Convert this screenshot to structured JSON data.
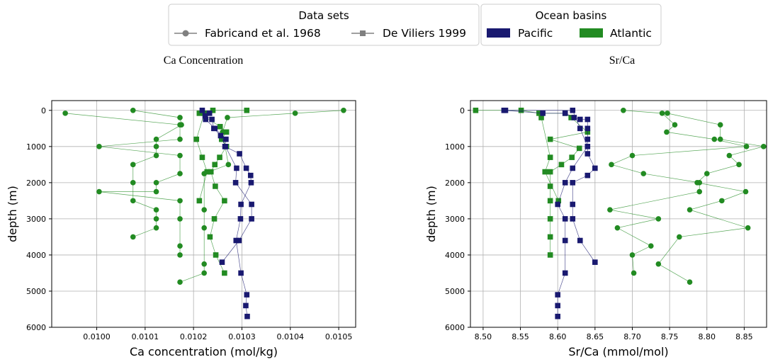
{
  "legend_datasets": {
    "title": "Data sets",
    "items": [
      {
        "label": "Fabricand et al. 1968",
        "marker": "circle"
      },
      {
        "label": "De Viliers 1999",
        "marker": "square"
      }
    ]
  },
  "legend_basins": {
    "title": "Ocean basins",
    "items": [
      {
        "label": "Pacific",
        "color": "#191970"
      },
      {
        "label": "Atlantic",
        "color": "#228b22"
      }
    ]
  },
  "colors": {
    "pacific": "#191970",
    "atlantic": "#228b22",
    "grid": "#b0b0b0"
  },
  "chart_data": [
    {
      "type": "line",
      "title": "Ca Concentration",
      "xlabel": "Ca concentration (mol/kg)",
      "ylabel": "depth (m)",
      "xlim": [
        0.009907,
        0.010535
      ],
      "ylim": [
        6000,
        -270
      ],
      "y_inverted": true,
      "grid": true,
      "xticks": [
        0.01,
        0.0101,
        0.0102,
        0.0103,
        0.0104,
        0.0105
      ],
      "xtick_labels": [
        "0.0100",
        "0.0101",
        "0.0102",
        "0.0103",
        "0.0104",
        "0.0105"
      ],
      "yticks": [
        0,
        1000,
        2000,
        3000,
        4000,
        5000,
        6000
      ],
      "ytick_labels": [
        "0",
        "1000",
        "2000",
        "3000",
        "4000",
        "5000",
        "6000"
      ],
      "series": [
        {
          "basin": "atlantic",
          "marker": "circle",
          "points": [
            [
              0.010075,
              0
            ],
            [
              0.010172,
              200
            ],
            [
              0.010175,
              400
            ],
            [
              0.010123,
              800
            ],
            [
              0.010123,
              1000
            ],
            [
              0.010123,
              1250
            ],
            [
              0.010075,
              1500
            ],
            [
              0.010075,
              2000
            ],
            [
              0.010075,
              2500
            ],
            [
              0.010123,
              2750
            ],
            [
              0.010123,
              3000
            ],
            [
              0.010123,
              3250
            ],
            [
              0.010075,
              3500
            ]
          ]
        },
        {
          "basin": "atlantic",
          "marker": "circle",
          "points": [
            [
              0.009935,
              80
            ],
            [
              0.010172,
              400
            ],
            [
              0.010172,
              800
            ],
            [
              0.010005,
              1000
            ],
            [
              0.010172,
              1250
            ],
            [
              0.010172,
              1750
            ],
            [
              0.010123,
              2000
            ],
            [
              0.010123,
              2250
            ],
            [
              0.010005,
              2250
            ],
            [
              0.010172,
              2500
            ],
            [
              0.010172,
              3000
            ],
            [
              0.010172,
              3750
            ],
            [
              0.010172,
              4000
            ]
          ]
        },
        {
          "basin": "atlantic",
          "marker": "circle",
          "points": [
            [
              0.01051,
              0
            ],
            [
              0.01041,
              80
            ],
            [
              0.01027,
              200
            ],
            [
              0.01026,
              600
            ],
            [
              0.010272,
              1500
            ],
            [
              0.010222,
              1750
            ],
            [
              0.010222,
              2750
            ],
            [
              0.010222,
              3250
            ],
            [
              0.010222,
              4250
            ],
            [
              0.010222,
              4500
            ],
            [
              0.010172,
              4750
            ]
          ]
        },
        {
          "basin": "atlantic",
          "marker": "square",
          "points": [
            [
              0.01031,
              0
            ],
            [
              0.01024,
              0
            ],
            [
              0.010212,
              80
            ],
            [
              0.010255,
              450
            ],
            [
              0.010268,
              600
            ],
            [
              0.010258,
              800
            ],
            [
              0.010268,
              1000
            ],
            [
              0.010254,
              1300
            ],
            [
              0.010244,
              1500
            ],
            [
              0.010236,
              1700
            ],
            [
              0.010245,
              2100
            ],
            [
              0.010264,
              2500
            ],
            [
              0.010243,
              3000
            ],
            [
              0.010234,
              3500
            ],
            [
              0.010246,
              4000
            ],
            [
              0.010264,
              4500
            ]
          ]
        },
        {
          "basin": "atlantic",
          "marker": "square",
          "points": [
            [
              0.010222,
              80
            ],
            [
              0.010206,
              800
            ],
            [
              0.010218,
              1300
            ],
            [
              0.010228,
              1700
            ],
            [
              0.010212,
              2500
            ]
          ]
        },
        {
          "basin": "pacific",
          "marker": "square",
          "points": [
            [
              0.010218,
              0
            ],
            [
              0.010233,
              80
            ],
            [
              0.010225,
              250
            ],
            [
              0.010244,
              500
            ],
            [
              0.010267,
              800
            ],
            [
              0.010265,
              1000
            ],
            [
              0.010295,
              1200
            ],
            [
              0.010309,
              1600
            ],
            [
              0.010318,
              1800
            ],
            [
              0.010319,
              2000
            ],
            [
              0.010298,
              2600
            ],
            [
              0.010297,
              3000
            ],
            [
              0.010288,
              3600
            ],
            [
              0.010298,
              4500
            ],
            [
              0.01031,
              5100
            ],
            [
              0.010308,
              5400
            ],
            [
              0.010311,
              5700
            ]
          ]
        },
        {
          "basin": "pacific",
          "marker": "square",
          "points": [
            [
              0.010224,
              150
            ],
            [
              0.010238,
              250
            ],
            [
              0.010242,
              500
            ],
            [
              0.010256,
              700
            ],
            [
              0.010266,
              1000
            ],
            [
              0.010289,
              1600
            ],
            [
              0.010287,
              2000
            ],
            [
              0.01032,
              2600
            ],
            [
              0.01032,
              3000
            ],
            [
              0.010294,
              3600
            ],
            [
              0.010259,
              4200
            ]
          ]
        }
      ]
    },
    {
      "type": "line",
      "title": "Sr/Ca",
      "xlabel": "Sr/Ca (mmol/mol)",
      "ylabel": "depth (m)",
      "xlim": [
        8.483,
        8.88
      ],
      "ylim": [
        6000,
        -270
      ],
      "y_inverted": true,
      "grid": true,
      "xticks": [
        8.5,
        8.55,
        8.6,
        8.65,
        8.7,
        8.75,
        8.8,
        8.85
      ],
      "xtick_labels": [
        "8.50",
        "8.55",
        "8.60",
        "8.65",
        "8.70",
        "8.75",
        "8.80",
        "8.85"
      ],
      "yticks": [
        0,
        1000,
        2000,
        3000,
        4000,
        5000,
        6000
      ],
      "ytick_labels": [
        "0",
        "1000",
        "2000",
        "3000",
        "4000",
        "5000",
        "6000"
      ],
      "series": [
        {
          "basin": "atlantic",
          "marker": "circle",
          "points": [
            [
              8.688,
              0
            ],
            [
              8.74,
              80
            ],
            [
              8.757,
              400
            ],
            [
              8.746,
              600
            ],
            [
              8.81,
              800
            ],
            [
              8.853,
              1000
            ],
            [
              8.7,
              1250
            ],
            [
              8.672,
              1500
            ],
            [
              8.715,
              1750
            ],
            [
              8.79,
              2000
            ],
            [
              8.79,
              2250
            ],
            [
              8.67,
              2750
            ],
            [
              8.735,
              3000
            ],
            [
              8.68,
              3250
            ],
            [
              8.725,
              3750
            ],
            [
              8.7,
              4000
            ],
            [
              8.702,
              4500
            ]
          ]
        },
        {
          "basin": "atlantic",
          "marker": "circle",
          "points": [
            [
              8.747,
              80
            ],
            [
              8.818,
              400
            ],
            [
              8.818,
              800
            ],
            [
              8.876,
              1000
            ],
            [
              8.83,
              1250
            ],
            [
              8.843,
              1500
            ],
            [
              8.8,
              1750
            ],
            [
              8.787,
              2000
            ],
            [
              8.852,
              2250
            ],
            [
              8.82,
              2500
            ],
            [
              8.777,
              2750
            ],
            [
              8.855,
              3250
            ],
            [
              8.763,
              3500
            ],
            [
              8.735,
              4250
            ],
            [
              8.777,
              4750
            ]
          ]
        },
        {
          "basin": "atlantic",
          "marker": "square",
          "points": [
            [
              8.49,
              0
            ],
            [
              8.551,
              0
            ],
            [
              8.575,
              80
            ],
            [
              8.61,
              80
            ],
            [
              8.618,
              200
            ],
            [
              8.64,
              600
            ],
            [
              8.59,
              800
            ],
            [
              8.629,
              1050
            ],
            [
              8.619,
              1300
            ],
            [
              8.605,
              1500
            ],
            [
              8.59,
              1700
            ],
            [
              8.59,
              2100
            ],
            [
              8.59,
              2500
            ],
            [
              8.59,
              3000
            ],
            [
              8.59,
              3500
            ],
            [
              8.59,
              4000
            ]
          ]
        },
        {
          "basin": "atlantic",
          "marker": "square",
          "points": [
            [
              8.578,
              200
            ],
            [
              8.59,
              1300
            ],
            [
              8.583,
              1700
            ],
            [
              8.601,
              2500
            ]
          ]
        },
        {
          "basin": "pacific",
          "marker": "square",
          "points": [
            [
              8.528,
              0
            ],
            [
              8.58,
              80
            ],
            [
              8.61,
              80
            ],
            [
              8.622,
              200
            ],
            [
              8.63,
              250
            ],
            [
              8.64,
              250
            ],
            [
              8.64,
              500
            ],
            [
              8.64,
              800
            ],
            [
              8.64,
              1200
            ],
            [
              8.65,
              1600
            ],
            [
              8.64,
              1800
            ],
            [
              8.62,
              2000
            ],
            [
              8.62,
              2600
            ],
            [
              8.62,
              3000
            ],
            [
              8.63,
              3600
            ],
            [
              8.65,
              4200
            ]
          ]
        },
        {
          "basin": "pacific",
          "marker": "square",
          "points": [
            [
              8.53,
              0
            ],
            [
              8.62,
              0
            ],
            [
              8.63,
              500
            ],
            [
              8.64,
              1000
            ],
            [
              8.62,
              1600
            ],
            [
              8.61,
              2000
            ],
            [
              8.6,
              2600
            ],
            [
              8.61,
              3000
            ],
            [
              8.61,
              3600
            ],
            [
              8.61,
              4500
            ],
            [
              8.6,
              5100
            ],
            [
              8.6,
              5400
            ],
            [
              8.6,
              5700
            ]
          ]
        }
      ]
    }
  ]
}
